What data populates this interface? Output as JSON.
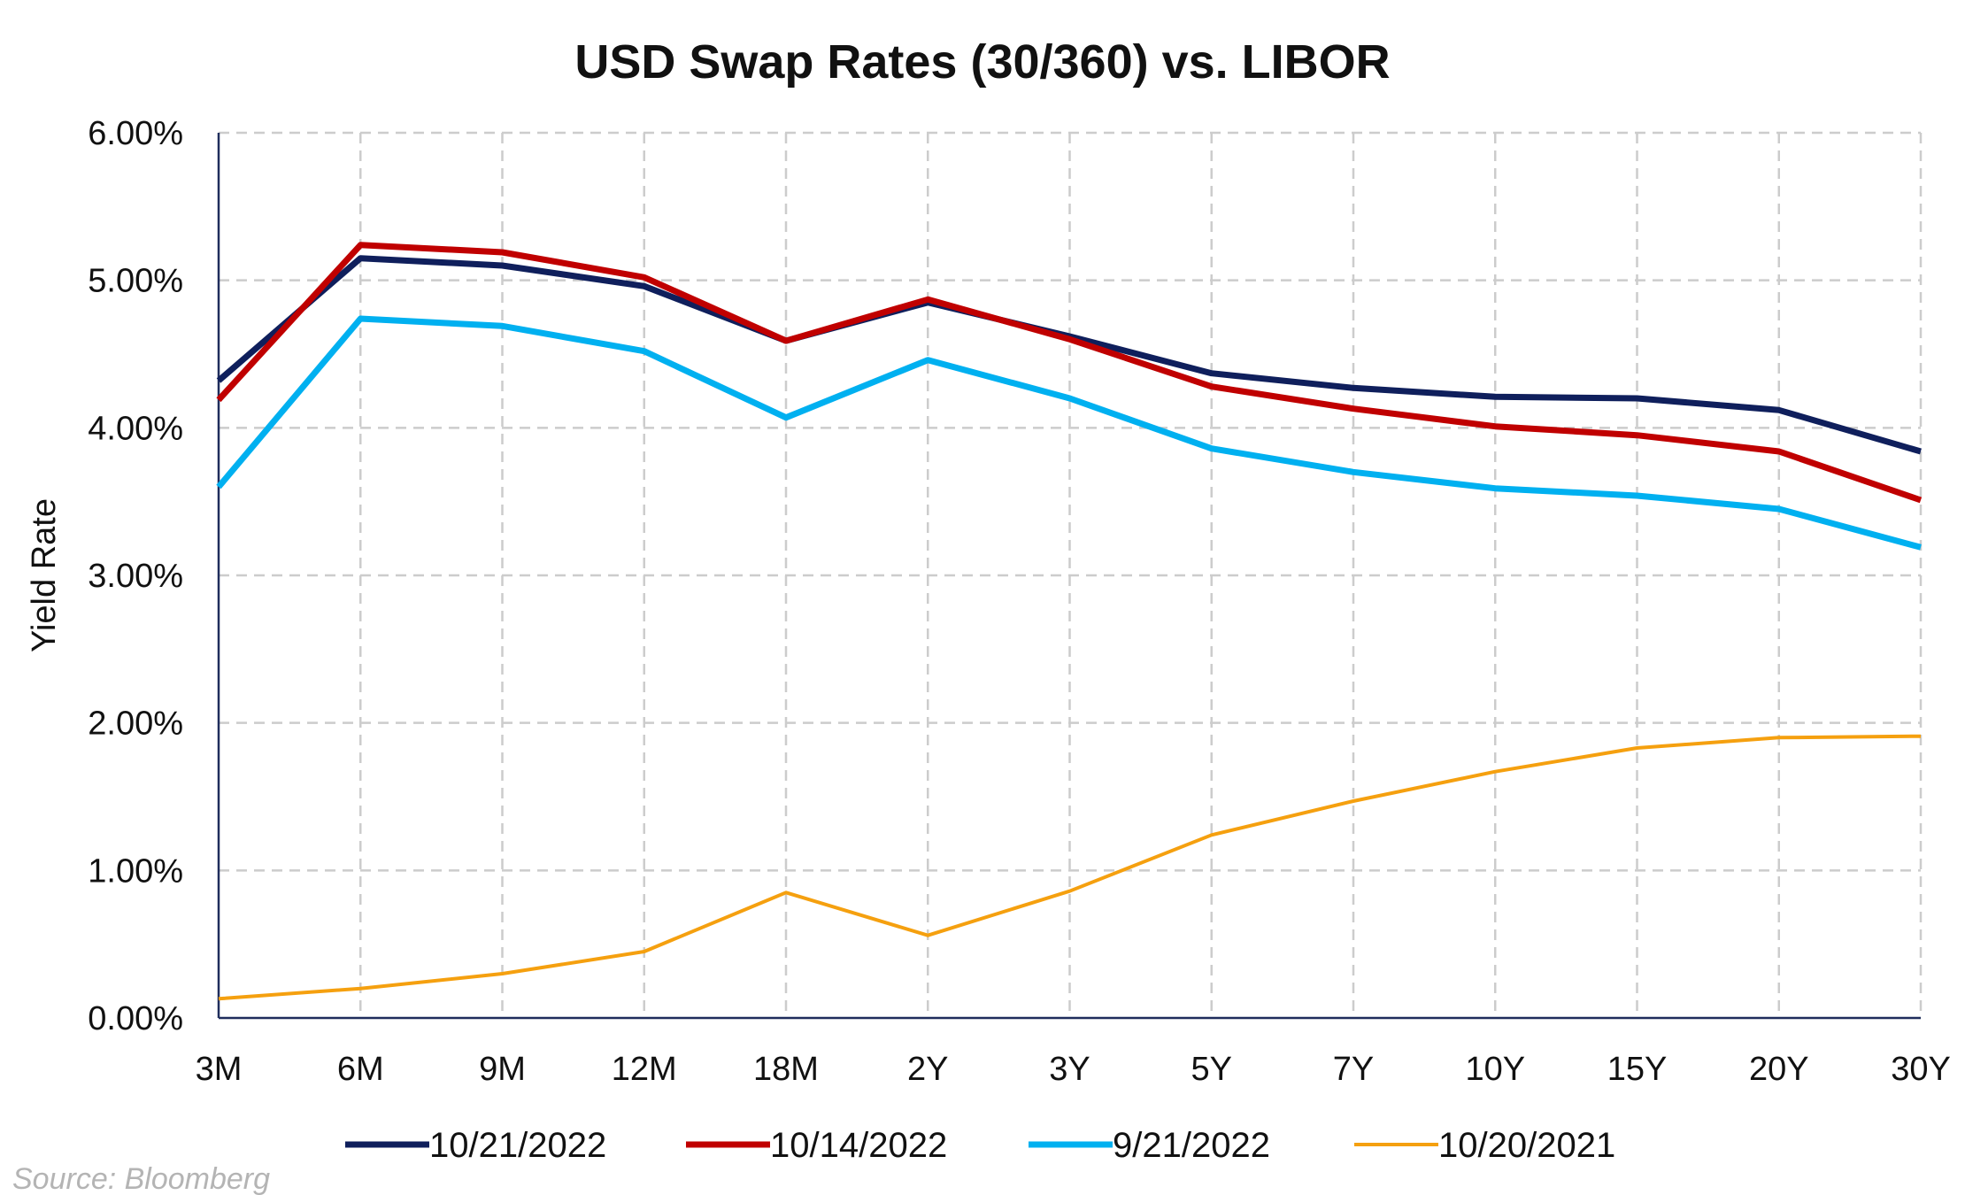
{
  "chart_data": {
    "type": "line",
    "title": "USD Swap Rates (30/360) vs. LIBOR",
    "xlabel": "",
    "ylabel": "Yield Rate",
    "ylim": [
      0,
      6
    ],
    "y_ticks": [
      "0.00%",
      "1.00%",
      "2.00%",
      "3.00%",
      "4.00%",
      "5.00%",
      "6.00%"
    ],
    "categories": [
      "3M",
      "6M",
      "9M",
      "12M",
      "18M",
      "2Y",
      "3Y",
      "5Y",
      "7Y",
      "10Y",
      "15Y",
      "20Y",
      "30Y"
    ],
    "grid": true,
    "legend_position": "bottom",
    "series": [
      {
        "name": "10/21/2022",
        "color": "#0f1f5c",
        "values": [
          4.32,
          5.15,
          5.1,
          4.96,
          4.59,
          4.85,
          4.62,
          4.37,
          4.27,
          4.21,
          4.2,
          4.12,
          3.84
        ]
      },
      {
        "name": "10/14/2022",
        "color": "#c00000",
        "values": [
          4.19,
          5.24,
          5.19,
          5.02,
          4.59,
          4.87,
          4.6,
          4.28,
          4.13,
          4.01,
          3.95,
          3.84,
          3.51
        ]
      },
      {
        "name": "9/21/2022",
        "color": "#00b0f0",
        "values": [
          3.6,
          4.74,
          4.69,
          4.52,
          4.07,
          4.46,
          4.2,
          3.86,
          3.7,
          3.59,
          3.54,
          3.45,
          3.19
        ]
      },
      {
        "name": "10/20/2021",
        "color": "#f5a00f",
        "values": [
          0.13,
          0.2,
          0.3,
          0.45,
          0.85,
          0.56,
          0.86,
          1.24,
          1.47,
          1.67,
          1.83,
          1.9,
          1.91
        ]
      }
    ]
  },
  "source_note": "Source: Bloomberg"
}
